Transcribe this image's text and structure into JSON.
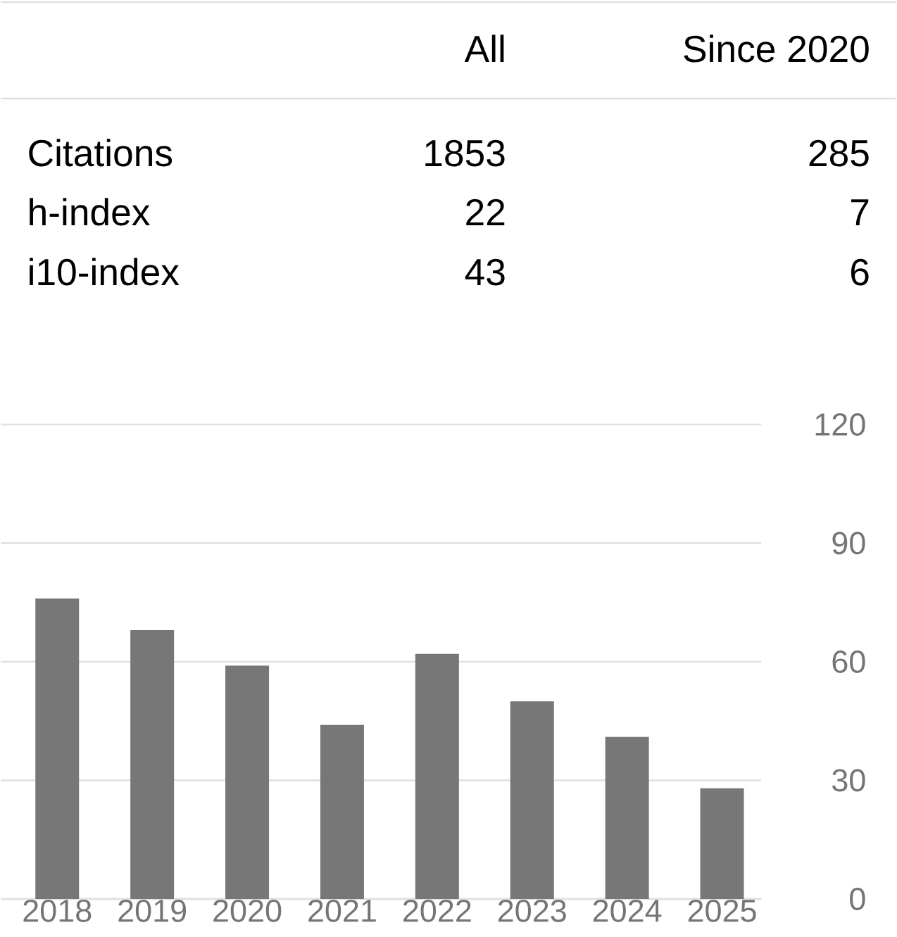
{
  "chart_data": [
    {
      "type": "other",
      "categories": [
        "All",
        "Since 2020"
      ],
      "y_categories": [
        "Citations",
        "h-index",
        "i10-index"
      ],
      "cells": [
        [
          "1853",
          "285"
        ],
        [
          "22",
          "7"
        ],
        [
          "43",
          "6"
        ]
      ]
    },
    {
      "type": "bar",
      "categories": [
        "2018",
        "2019",
        "2020",
        "2021",
        "2022",
        "2023",
        "2024",
        "2025"
      ],
      "values": [
        76,
        68,
        59,
        44,
        62,
        50,
        41,
        28
      ],
      "color": "#777777",
      "ylim": [
        0,
        120
      ],
      "yticks": [
        0,
        30,
        60,
        90,
        120
      ],
      "grid": "y"
    }
  ]
}
